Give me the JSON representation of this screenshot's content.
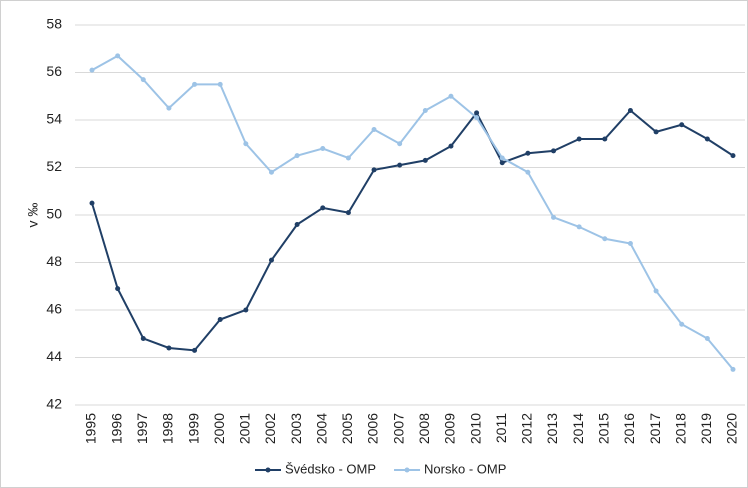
{
  "chart_data": {
    "type": "line",
    "y_label": "v ‰",
    "categories": [
      "1995",
      "1996",
      "1997",
      "1998",
      "1999",
      "2000",
      "2001",
      "2002",
      "2003",
      "2004",
      "2005",
      "2006",
      "2007",
      "2008",
      "2009",
      "2010",
      "2011",
      "2012",
      "2013",
      "2014",
      "2015",
      "2016",
      "2017",
      "2018",
      "2019",
      "2020"
    ],
    "series": [
      {
        "name": "Švédsko - OMP",
        "color": "#203f66",
        "values": [
          50.5,
          46.9,
          44.8,
          44.4,
          44.3,
          45.6,
          46.0,
          48.1,
          49.6,
          50.3,
          50.1,
          51.9,
          52.1,
          52.3,
          52.9,
          54.3,
          52.2,
          52.6,
          52.7,
          53.2,
          53.2,
          54.4,
          53.5,
          53.8,
          53.2,
          52.5
        ]
      },
      {
        "name": "Norsko - OMP",
        "color": "#9dc3e6",
        "values": [
          56.1,
          56.7,
          55.7,
          54.5,
          55.5,
          55.5,
          53.0,
          51.8,
          52.5,
          52.8,
          52.4,
          53.6,
          53.0,
          54.4,
          55.0,
          54.1,
          52.4,
          51.8,
          49.9,
          49.5,
          49.0,
          48.8,
          46.8,
          45.4,
          44.8,
          43.5
        ]
      }
    ],
    "ylim": [
      42,
      58
    ],
    "yticks": [
      42,
      44,
      46,
      48,
      50,
      52,
      54,
      56,
      58
    ],
    "grid": true,
    "legend": "bottom"
  }
}
